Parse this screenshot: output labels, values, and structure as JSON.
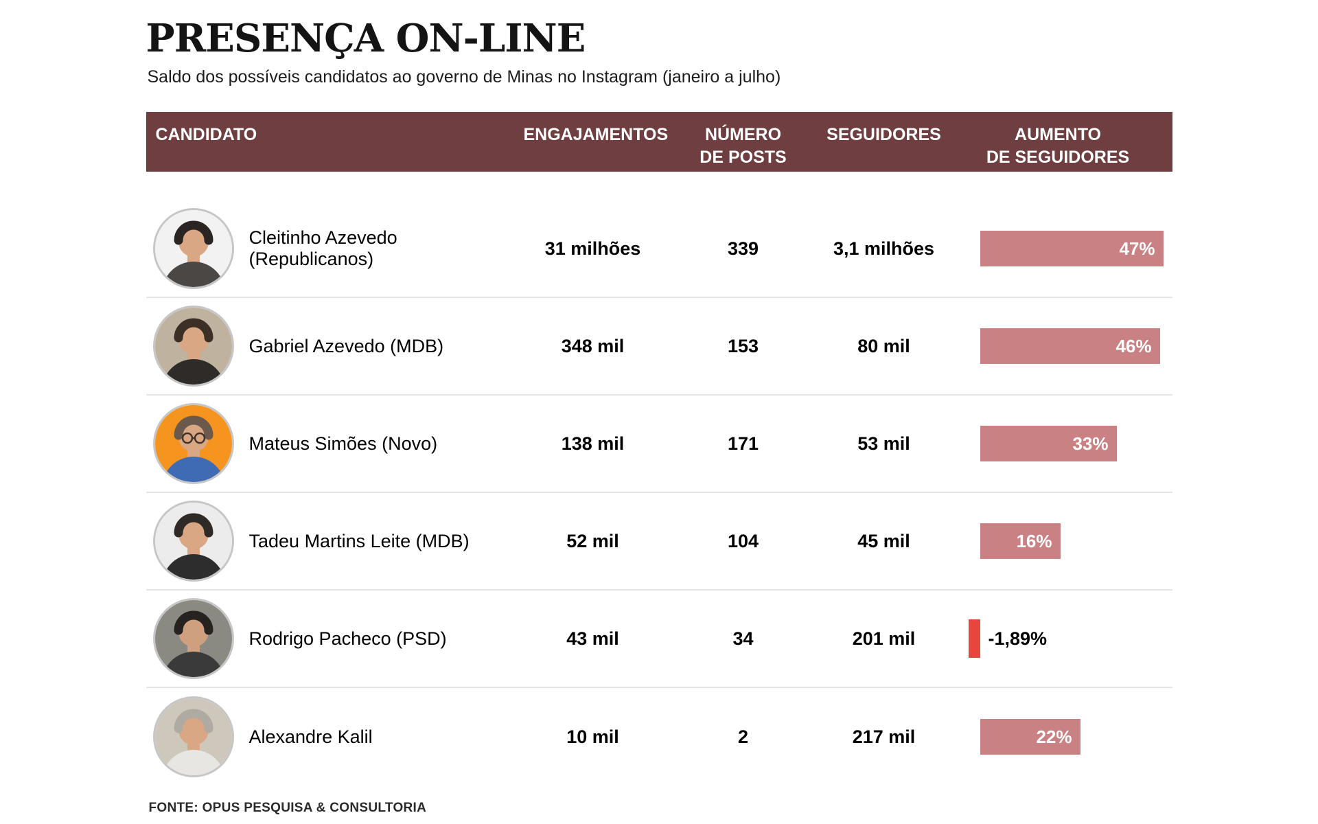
{
  "title": "PRESENÇA ON-LINE",
  "subtitle": "Saldo dos possíveis candidatos ao governo de Minas no Instagram (janeiro a julho)",
  "source": "FONTE: OPUS PESQUISA & CONSULTORIA",
  "colors": {
    "header_bg": "#6e3e40",
    "bar_positive": "#c98183",
    "bar_negative": "#e8463c",
    "separator": "#e4e4e4",
    "avatar_ring": "#c6c6c6"
  },
  "header": {
    "columns": [
      {
        "line1": "CANDIDATO",
        "line2": ""
      },
      {
        "line1": "ENGAJAMENTOS",
        "line2": ""
      },
      {
        "line1": "NÚMERO",
        "line2": "DE POSTS"
      },
      {
        "line1": "SEGUIDORES",
        "line2": ""
      },
      {
        "line1": "AUMENTO",
        "line2": "DE SEGUIDORES"
      }
    ]
  },
  "avatars": [
    {
      "person": "Cleitinho Azevedo",
      "bg": "#f2f2f2",
      "hair": "#2a2522",
      "shirt": "#4a4744",
      "skin": "#d9a784",
      "glasses": false
    },
    {
      "person": "Gabriel Azevedo",
      "bg": "#bfb3a0",
      "hair": "#3b2f26",
      "shirt": "#2e2b28",
      "skin": "#d9a784",
      "glasses": false
    },
    {
      "person": "Mateus Simões",
      "bg": "#f5941e",
      "hair": "#6b5a4c",
      "shirt": "#3f6bb5",
      "skin": "#d9a784",
      "glasses": true
    },
    {
      "person": "Tadeu Martins Leite",
      "bg": "#ececec",
      "hair": "#2f2a26",
      "shirt": "#2d2d2d",
      "skin": "#d9a784",
      "glasses": false
    },
    {
      "person": "Rodrigo Pacheco",
      "bg": "#8a8a82",
      "hair": "#262220",
      "shirt": "#3a3a3a",
      "skin": "#cfa080",
      "glasses": false
    },
    {
      "person": "Alexandre Kalil",
      "bg": "#cdc7bc",
      "hair": "#b0aba2",
      "shirt": "#e8e6e2",
      "skin": "#d9a784",
      "glasses": false
    }
  ],
  "chart_data": {
    "type": "table",
    "title": "PRESENÇA ON-LINE",
    "subtitle": "Saldo dos possíveis candidatos ao governo de Minas no Instagram (janeiro a julho)",
    "columns": [
      "CANDIDATO",
      "ENGAJAMENTOS",
      "NÚMERO DE POSTS",
      "SEGUIDORES",
      "AUMENTO DE SEGUIDORES"
    ],
    "bar_column": "AUMENTO DE SEGUIDORES",
    "bar_range": [
      -2,
      47
    ],
    "rows": [
      {
        "candidato": "Cleitinho Azevedo (Republicanos)",
        "engajamentos": "31 milhões",
        "numero_de_posts": 339,
        "seguidores": "3,1 milhões",
        "aumento_de_seguidores_pct": 47,
        "aumento_de_seguidores_label": "47%"
      },
      {
        "candidato": "Gabriel Azevedo (MDB)",
        "engajamentos": "348 mil",
        "numero_de_posts": 153,
        "seguidores": "80 mil",
        "aumento_de_seguidores_pct": 46,
        "aumento_de_seguidores_label": "46%"
      },
      {
        "candidato": "Mateus Simões (Novo)",
        "engajamentos": "138 mil",
        "numero_de_posts": 171,
        "seguidores": "53 mil",
        "aumento_de_seguidores_pct": 33,
        "aumento_de_seguidores_label": "33%"
      },
      {
        "candidato": "Tadeu Martins Leite (MDB)",
        "engajamentos": "52 mil",
        "numero_de_posts": 104,
        "seguidores": "45 mil",
        "aumento_de_seguidores_pct": 16,
        "aumento_de_seguidores_label": "16%"
      },
      {
        "candidato": "Rodrigo Pacheco (PSD)",
        "engajamentos": "43 mil",
        "numero_de_posts": 34,
        "seguidores": "201 mil",
        "aumento_de_seguidores_pct": -1.89,
        "aumento_de_seguidores_label": "-1,89%"
      },
      {
        "candidato": "Alexandre Kalil",
        "engajamentos": "10 mil",
        "numero_de_posts": 2,
        "seguidores": "217 mil",
        "aumento_de_seguidores_pct": 22,
        "aumento_de_seguidores_label": "22%"
      }
    ]
  }
}
